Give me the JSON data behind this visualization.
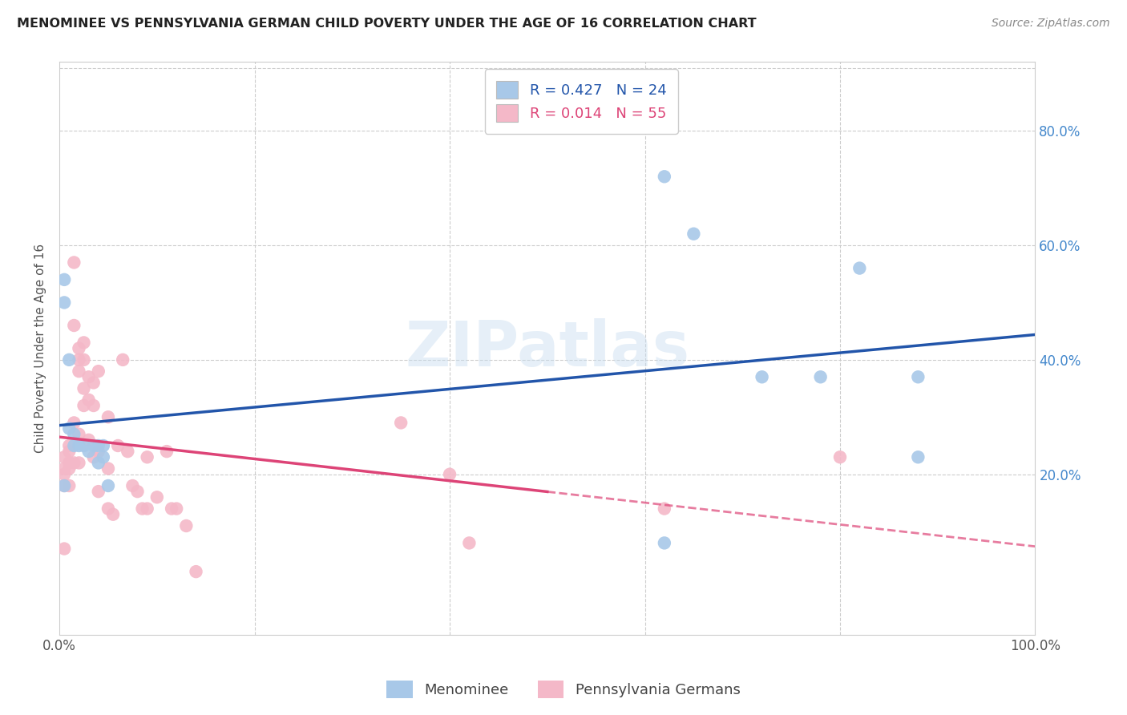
{
  "title": "MENOMINEE VS PENNSYLVANIA GERMAN CHILD POVERTY UNDER THE AGE OF 16 CORRELATION CHART",
  "source": "Source: ZipAtlas.com",
  "ylabel": "Child Poverty Under the Age of 16",
  "xlim": [
    0.0,
    1.0
  ],
  "ylim": [
    -0.08,
    0.92
  ],
  "watermark": "ZIPatlas",
  "menominee_color": "#a8c8e8",
  "penn_german_color": "#f4b8c8",
  "menominee_line_color": "#2255aa",
  "penn_german_line_color": "#dd4477",
  "R_menominee": 0.427,
  "N_menominee": 24,
  "R_penn": 0.014,
  "N_penn": 55,
  "menominee_x": [
    0.005,
    0.005,
    0.005,
    0.01,
    0.01,
    0.015,
    0.015,
    0.02,
    0.025,
    0.03,
    0.035,
    0.04,
    0.04,
    0.045,
    0.045,
    0.05,
    0.62,
    0.65,
    0.72,
    0.78,
    0.82,
    0.88,
    0.88,
    0.62
  ],
  "menominee_y": [
    0.54,
    0.5,
    0.18,
    0.4,
    0.28,
    0.27,
    0.25,
    0.25,
    0.25,
    0.24,
    0.25,
    0.25,
    0.22,
    0.25,
    0.23,
    0.18,
    0.72,
    0.62,
    0.37,
    0.37,
    0.56,
    0.37,
    0.23,
    0.08
  ],
  "penn_x": [
    0.005,
    0.005,
    0.005,
    0.005,
    0.005,
    0.01,
    0.01,
    0.01,
    0.01,
    0.01,
    0.015,
    0.015,
    0.015,
    0.015,
    0.02,
    0.02,
    0.02,
    0.02,
    0.02,
    0.025,
    0.025,
    0.025,
    0.025,
    0.03,
    0.03,
    0.03,
    0.035,
    0.035,
    0.035,
    0.04,
    0.04,
    0.04,
    0.05,
    0.05,
    0.05,
    0.055,
    0.06,
    0.065,
    0.07,
    0.075,
    0.08,
    0.085,
    0.09,
    0.09,
    0.1,
    0.11,
    0.115,
    0.12,
    0.13,
    0.14,
    0.35,
    0.4,
    0.42,
    0.62,
    0.8
  ],
  "penn_y": [
    0.23,
    0.21,
    0.2,
    0.18,
    0.07,
    0.25,
    0.24,
    0.22,
    0.21,
    0.18,
    0.57,
    0.46,
    0.29,
    0.22,
    0.42,
    0.4,
    0.38,
    0.27,
    0.22,
    0.43,
    0.4,
    0.35,
    0.32,
    0.37,
    0.33,
    0.26,
    0.36,
    0.32,
    0.23,
    0.38,
    0.24,
    0.17,
    0.3,
    0.21,
    0.14,
    0.13,
    0.25,
    0.4,
    0.24,
    0.18,
    0.17,
    0.14,
    0.23,
    0.14,
    0.16,
    0.24,
    0.14,
    0.14,
    0.11,
    0.03,
    0.29,
    0.2,
    0.08,
    0.14,
    0.23
  ],
  "legend_labels": [
    "Menominee",
    "Pennsylvania Germans"
  ],
  "background_color": "#ffffff",
  "grid_color": "#cccccc",
  "ytick_vals": [
    0.2,
    0.4,
    0.6,
    0.8
  ],
  "ytick_labels": [
    "20.0%",
    "40.0%",
    "60.0%",
    "80.0%"
  ]
}
